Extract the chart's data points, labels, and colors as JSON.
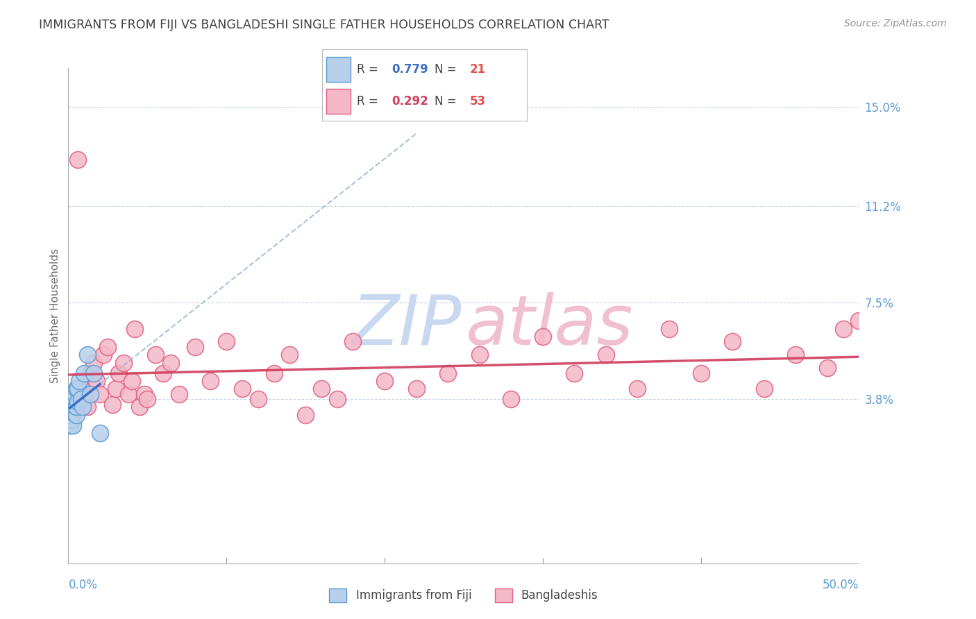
{
  "title": "IMMIGRANTS FROM FIJI VS BANGLADESHI SINGLE FATHER HOUSEHOLDS CORRELATION CHART",
  "source": "Source: ZipAtlas.com",
  "ylabel": "Single Father Households",
  "xlim": [
    0.0,
    0.5
  ],
  "ylim": [
    -0.025,
    0.165
  ],
  "ytick_positions": [
    0.038,
    0.075,
    0.112,
    0.15
  ],
  "ytick_labels": [
    "3.8%",
    "7.5%",
    "11.2%",
    "15.0%"
  ],
  "fiji_color": "#b8d0ea",
  "fiji_edge_color": "#5b9bd5",
  "bangladesh_color": "#f4b8c8",
  "bangladesh_edge_color": "#e06080",
  "fiji_trend_color": "#3a6fc4",
  "fiji_dashed_color": "#9ab8d8",
  "bangladesh_trend_color": "#d04060",
  "grid_color": "#c8d4e4",
  "background_color": "#ffffff",
  "title_color": "#404040",
  "axis_label_color": "#707070",
  "ytick_color": "#5b9bd5",
  "xtick_color": "#5b9bd5",
  "fiji_scatter_x": [
    0.001,
    0.002,
    0.002,
    0.003,
    0.003,
    0.003,
    0.004,
    0.004,
    0.005,
    0.005,
    0.005,
    0.006,
    0.006,
    0.007,
    0.008,
    0.009,
    0.01,
    0.012,
    0.014,
    0.016,
    0.02
  ],
  "fiji_scatter_y": [
    0.028,
    0.03,
    0.032,
    0.028,
    0.033,
    0.036,
    0.038,
    0.04,
    0.032,
    0.035,
    0.042,
    0.037,
    0.042,
    0.045,
    0.038,
    0.035,
    0.048,
    0.055,
    0.04,
    0.048,
    0.025
  ],
  "bangladesh_scatter_x": [
    0.004,
    0.006,
    0.008,
    0.01,
    0.012,
    0.014,
    0.016,
    0.018,
    0.02,
    0.022,
    0.025,
    0.028,
    0.03,
    0.032,
    0.035,
    0.038,
    0.04,
    0.042,
    0.045,
    0.048,
    0.05,
    0.055,
    0.06,
    0.065,
    0.07,
    0.08,
    0.09,
    0.1,
    0.11,
    0.12,
    0.13,
    0.14,
    0.15,
    0.16,
    0.17,
    0.18,
    0.2,
    0.22,
    0.24,
    0.26,
    0.28,
    0.3,
    0.32,
    0.34,
    0.36,
    0.38,
    0.4,
    0.42,
    0.44,
    0.46,
    0.48,
    0.49,
    0.5
  ],
  "bangladesh_scatter_y": [
    0.038,
    0.13,
    0.042,
    0.038,
    0.035,
    0.048,
    0.052,
    0.045,
    0.04,
    0.055,
    0.058,
    0.036,
    0.042,
    0.048,
    0.052,
    0.04,
    0.045,
    0.065,
    0.035,
    0.04,
    0.038,
    0.055,
    0.048,
    0.052,
    0.04,
    0.058,
    0.045,
    0.06,
    0.042,
    0.038,
    0.048,
    0.055,
    0.032,
    0.042,
    0.038,
    0.06,
    0.045,
    0.042,
    0.048,
    0.055,
    0.038,
    0.062,
    0.048,
    0.055,
    0.042,
    0.065,
    0.048,
    0.06,
    0.042,
    0.055,
    0.05,
    0.065,
    0.068
  ],
  "legend_fiji_R": "0.779",
  "legend_fiji_N": "21",
  "legend_bang_R": "0.292",
  "legend_bang_N": "53"
}
